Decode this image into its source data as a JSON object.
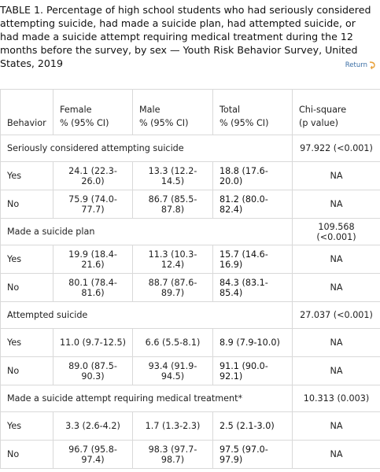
{
  "caption": "TABLE 1. Percentage of high school students who had seriously considered attempting suicide, had made a suicide plan, had attempted suicide, or had made a suicide attempt requiring medical treatment during the 12 months before the survey, by sex — Youth Risk Behavior Survey, United States, 2019",
  "return_label": "Return",
  "columns": {
    "behavior": "Behavior",
    "female": [
      "Female",
      "% (95% CI)"
    ],
    "male": [
      "Male",
      "% (95% CI)"
    ],
    "total": [
      "Total",
      "% (95% CI)"
    ],
    "chi": [
      "Chi-square",
      "(p value)"
    ]
  },
  "groups": [
    {
      "label": "Seriously considered attempting suicide",
      "chi": "97.922 (<0.001)",
      "rows": [
        {
          "behavior": "Yes",
          "female": "24.1 (22.3-26.0)",
          "male": "13.3 (12.2-14.5)",
          "total": "18.8 (17.6-20.0)",
          "chi": "NA"
        },
        {
          "behavior": "No",
          "female": "75.9 (74.0-77.7)",
          "male": "86.7 (85.5-87.8)",
          "total": "81.2 (80.0-82.4)",
          "chi": "NA"
        }
      ]
    },
    {
      "label": "Made a suicide plan",
      "chi": "109.568 (<0.001)",
      "rows": [
        {
          "behavior": "Yes",
          "female": "19.9 (18.4-21.6)",
          "male": "11.3 (10.3-12.4)",
          "total": "15.7 (14.6-16.9)",
          "chi": "NA"
        },
        {
          "behavior": "No",
          "female": "80.1 (78.4-81.6)",
          "male": "88.7 (87.6-89.7)",
          "total": "84.3 (83.1-85.4)",
          "chi": "NA"
        }
      ]
    },
    {
      "label": "Attempted suicide",
      "chi": "27.037 (<0.001)",
      "rows": [
        {
          "behavior": "Yes",
          "female": "11.0 (9.7-12.5)",
          "male": "6.6 (5.5-8.1)",
          "total": "8.9 (7.9-10.0)",
          "chi": "NA"
        },
        {
          "behavior": "No",
          "female": "89.0 (87.5-90.3)",
          "male": "93.4 (91.9-94.5)",
          "total": "91.1 (90.0-92.1)",
          "chi": "NA"
        }
      ]
    },
    {
      "label": "Made a suicide attempt requiring medical treatment*",
      "chi": "10.313 (0.003)",
      "rows": [
        {
          "behavior": "Yes",
          "female": "3.3 (2.6-4.2)",
          "male": "1.7 (1.3-2.3)",
          "total": "2.5 (2.1-3.0)",
          "chi": "NA"
        },
        {
          "behavior": "No",
          "female": "96.7 (95.8-97.4)",
          "male": "98.3 (97.7-98.7)",
          "total": "97.5 (97.0-97.9)",
          "chi": "NA"
        }
      ]
    }
  ],
  "link_color": "#3a6ea5",
  "arrow_color": "#e8a13a"
}
